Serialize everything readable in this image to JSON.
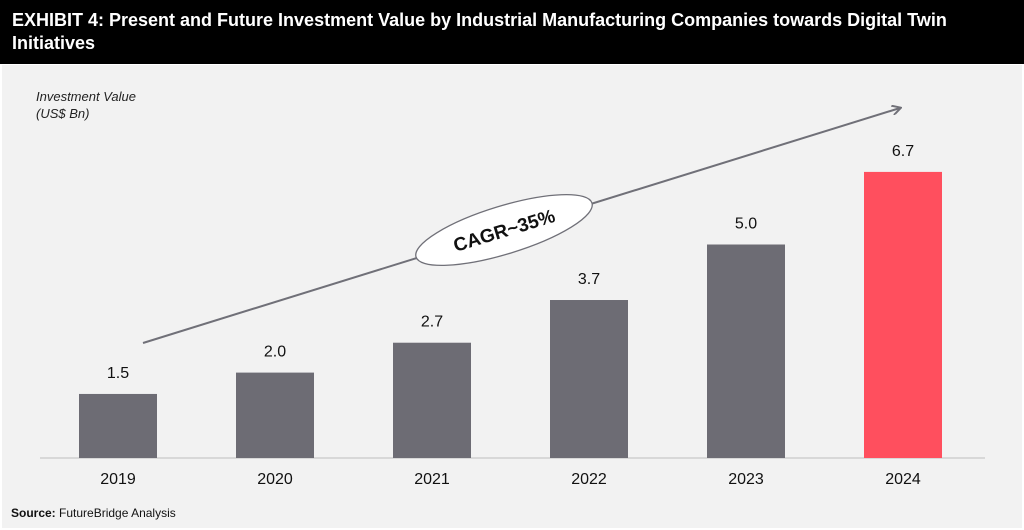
{
  "title": "EXHIBIT 4: Present and Future Investment Value by Industrial Manufacturing Companies towards Digital Twin Initiatives",
  "source": {
    "label": "Source:",
    "text": "FutureBridge Analysis"
  },
  "chart_data": {
    "type": "bar",
    "ylabel_line1": "Investment Value",
    "ylabel_line2": "(US$ Bn)",
    "categories": [
      "2019",
      "2020",
      "2021",
      "2022",
      "2023",
      "2024"
    ],
    "values": [
      1.5,
      2.0,
      2.7,
      3.7,
      5.0,
      6.7
    ],
    "value_labels": [
      "1.5",
      "2.0",
      "2.7",
      "3.7",
      "5.0",
      "6.7"
    ],
    "colors": [
      "#6d6c74",
      "#6d6c74",
      "#6d6c74",
      "#6d6c74",
      "#6d6c74",
      "#ff4f5e"
    ],
    "annotation": "CAGR~35%",
    "grid": false,
    "legend": "none"
  }
}
